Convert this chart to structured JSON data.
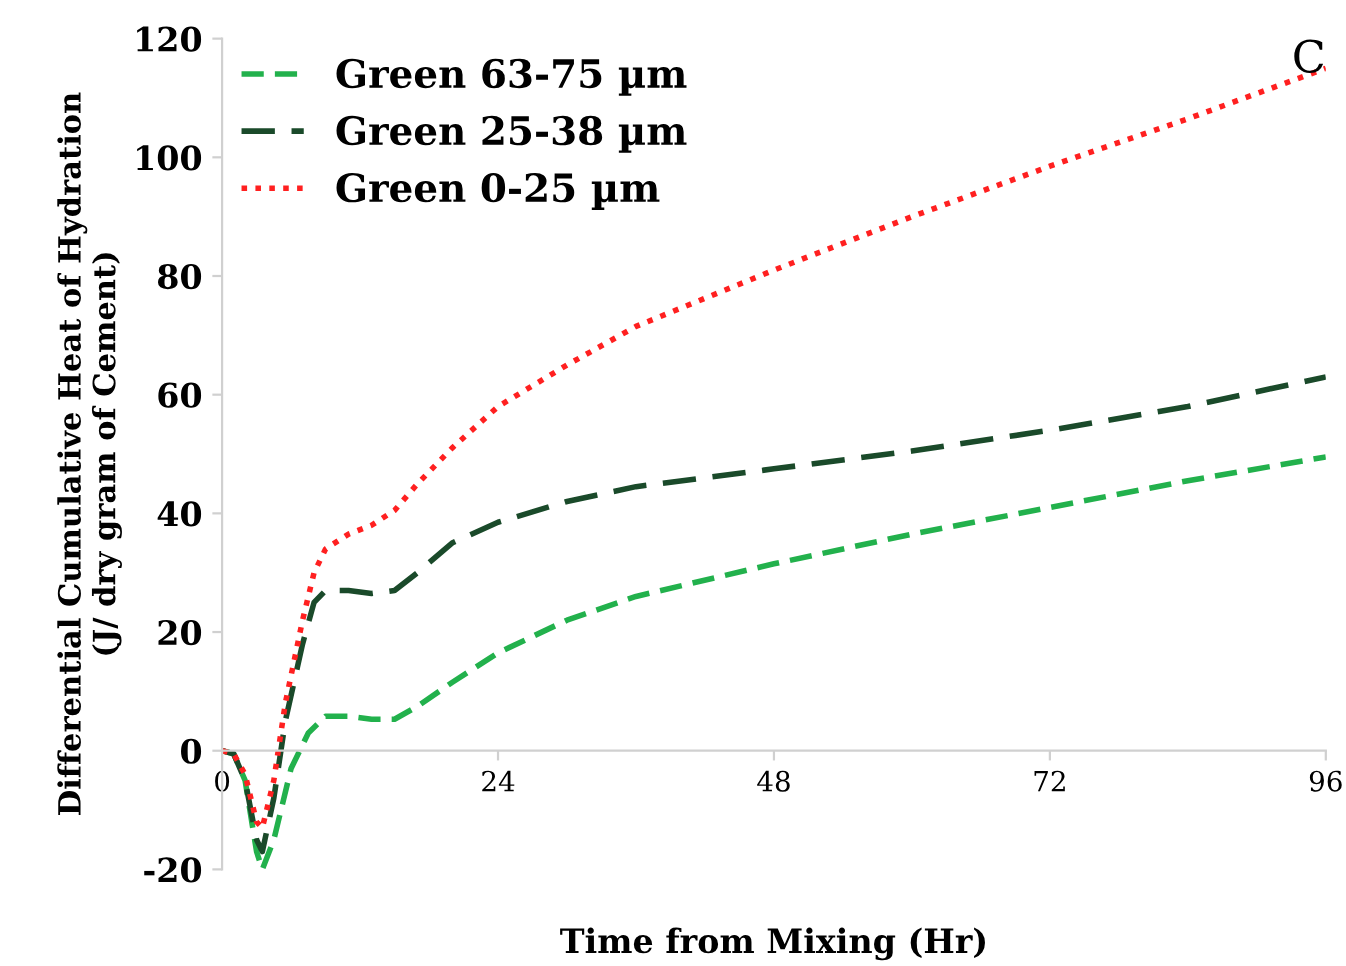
{
  "chart_data": {
    "type": "line",
    "xlabel": "Time from Mixing (Hr)",
    "ylabel": "Differential Cumulative Heat of Hydration\n(J/ dry gram of Cement)",
    "xlim": [
      0,
      96
    ],
    "ylim": [
      -20,
      120
    ],
    "xticks": [
      0,
      24,
      48,
      72,
      96
    ],
    "yticks": [
      -20,
      0,
      20,
      40,
      60,
      80,
      100,
      120
    ],
    "grid": false,
    "legend": "top left",
    "marker": "none",
    "annotations": [
      "C"
    ],
    "series": [
      {
        "name": "Green 63-75 µm",
        "color": "#22b14c",
        "line_style": "dashed",
        "x": [
          0,
          1,
          2,
          3,
          3.5,
          4.5,
          6,
          7.5,
          9,
          11,
          13,
          15,
          17,
          20,
          24,
          30,
          36,
          48,
          60,
          72,
          84,
          96
        ],
        "values": [
          0,
          -0.5,
          -5,
          -17,
          -20,
          -15,
          -3,
          3,
          5.8,
          5.8,
          5.3,
          5.3,
          7.5,
          11.5,
          16.5,
          22,
          26,
          31.5,
          36.5,
          41,
          45.5,
          49.5
        ]
      },
      {
        "name": "Green 25-38 µm",
        "color": "#1a4a2a",
        "line_style": "dashed",
        "x": [
          0,
          1,
          2,
          3,
          3.5,
          4.5,
          5.5,
          7,
          8,
          9,
          11,
          13,
          15,
          17,
          20,
          24,
          30,
          36,
          48,
          60,
          72,
          84,
          96
        ],
        "values": [
          0,
          -0.5,
          -5,
          -15,
          -17,
          -8,
          5,
          18,
          25,
          27,
          27,
          26.5,
          27,
          30,
          35,
          38.5,
          42,
          44.5,
          47.5,
          50.5,
          54,
          58,
          63
        ]
      },
      {
        "name": "Green 0-25 µm",
        "color": "#ff2020",
        "line_style": "dotted",
        "x": [
          0,
          1,
          2,
          3,
          3.5,
          4.5,
          5.5,
          7,
          8,
          9,
          11,
          13,
          15,
          17,
          20,
          24,
          30,
          36,
          48,
          60,
          72,
          84,
          96
        ],
        "values": [
          0,
          -0.5,
          -4,
          -12,
          -13,
          -5,
          8,
          22,
          30,
          34,
          36.5,
          38,
          40.5,
          45,
          51,
          58,
          65,
          71.5,
          81,
          90,
          98.5,
          106.5,
          115
        ]
      }
    ]
  }
}
